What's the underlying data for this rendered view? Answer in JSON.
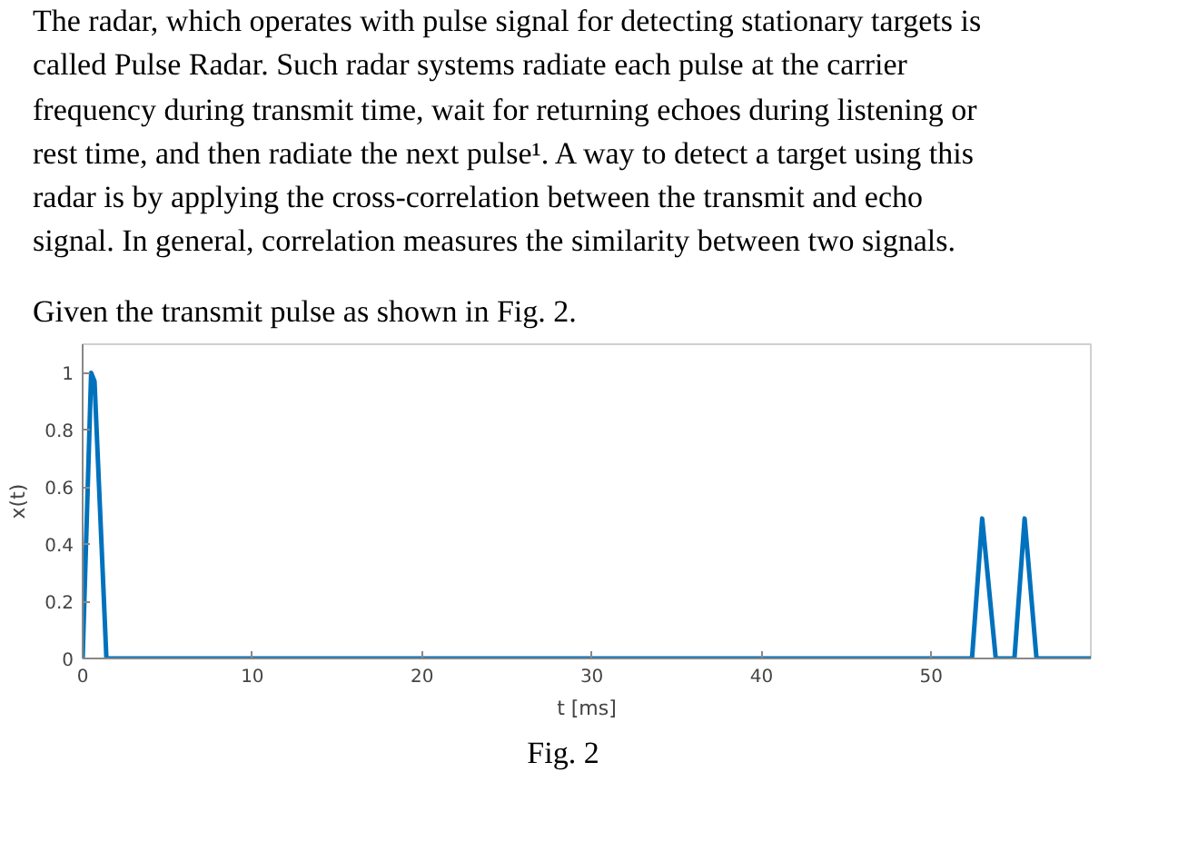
{
  "chart_data": {
    "type": "line",
    "xlabel": "t [ms]",
    "ylabel": "x(t)",
    "color": "#0072bd",
    "x": [
      0,
      0.5,
      0.7,
      1.4,
      52.4,
      53.0,
      53.8,
      54.9,
      55.5,
      56.2,
      59.4
    ],
    "values": [
      0,
      1.0,
      0.97,
      0,
      0,
      0.49,
      0,
      0,
      0.49,
      0,
      0
    ],
    "xlim": [
      0,
      59.4
    ],
    "ylim": [
      0,
      1.1
    ],
    "xticks": [
      0,
      10,
      20,
      30,
      40,
      50
    ],
    "yticks": [
      0,
      0.2,
      0.4,
      0.6,
      0.8,
      1
    ],
    "annotations": [
      "The radar, which operates with pulse signal for detecting stationary targets is",
      "called Pulse Radar. Such radar systems radiate each pulse at the carrier",
      "frequency during transmit time, wait for returning echoes during listening or",
      "rest time, and then radiate the next pulse¹. A way to detect a target using this",
      "radar is by applying the cross-correlation between the transmit and echo",
      "signal. In general, correlation measures the similarity between two signals.",
      "Given the transmit pulse as shown in Fig. 2.",
      "Fig. 2"
    ]
  }
}
